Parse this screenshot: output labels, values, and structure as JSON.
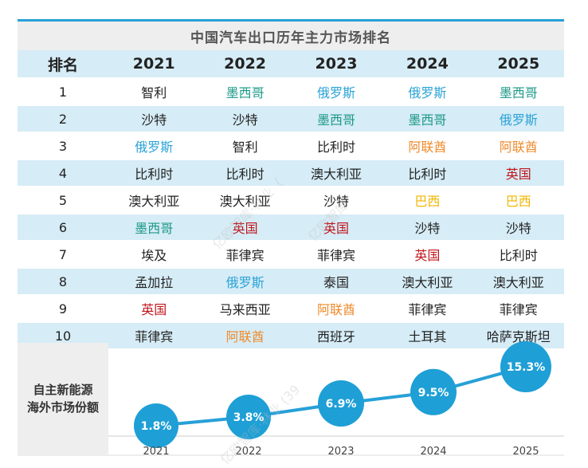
{
  "title": "中国汽车出口历年主力市场排名",
  "colors": {
    "accent": "#27a0d8",
    "bubble": "#1e9fd6",
    "row_band": "#d6ecf6",
    "red": "#c0161c",
    "teal": "#1d9988",
    "blue": "#2aa3d6",
    "orange": "#ef8a2a",
    "yellow": "#f2b600",
    "black": "#222222"
  },
  "table": {
    "header_rank": "排名",
    "years": [
      "2021",
      "2022",
      "2023",
      "2024",
      "2025"
    ],
    "rows": [
      {
        "rank": "1",
        "cells": [
          {
            "text": "智利",
            "color": "black"
          },
          {
            "text": "墨西哥",
            "color": "teal"
          },
          {
            "text": "俄罗斯",
            "color": "blue"
          },
          {
            "text": "俄罗斯",
            "color": "blue"
          },
          {
            "text": "墨西哥",
            "color": "teal"
          }
        ]
      },
      {
        "rank": "2",
        "cells": [
          {
            "text": "沙特",
            "color": "black"
          },
          {
            "text": "沙特",
            "color": "black"
          },
          {
            "text": "墨西哥",
            "color": "teal"
          },
          {
            "text": "墨西哥",
            "color": "teal"
          },
          {
            "text": "俄罗斯",
            "color": "blue"
          }
        ]
      },
      {
        "rank": "3",
        "cells": [
          {
            "text": "俄罗斯",
            "color": "blue"
          },
          {
            "text": "智利",
            "color": "black"
          },
          {
            "text": "比利时",
            "color": "black"
          },
          {
            "text": "阿联酋",
            "color": "orange"
          },
          {
            "text": "阿联酋",
            "color": "orange"
          }
        ]
      },
      {
        "rank": "4",
        "cells": [
          {
            "text": "比利时",
            "color": "black"
          },
          {
            "text": "比利时",
            "color": "black"
          },
          {
            "text": "澳大利亚",
            "color": "black"
          },
          {
            "text": "比利时",
            "color": "black"
          },
          {
            "text": "英国",
            "color": "red"
          }
        ]
      },
      {
        "rank": "5",
        "cells": [
          {
            "text": "澳大利亚",
            "color": "black"
          },
          {
            "text": "澳大利亚",
            "color": "black"
          },
          {
            "text": "沙特",
            "color": "black"
          },
          {
            "text": "巴西",
            "color": "yellow"
          },
          {
            "text": "巴西",
            "color": "yellow"
          }
        ]
      },
      {
        "rank": "6",
        "cells": [
          {
            "text": "墨西哥",
            "color": "teal"
          },
          {
            "text": "英国",
            "color": "red"
          },
          {
            "text": "英国",
            "color": "red"
          },
          {
            "text": "沙特",
            "color": "black"
          },
          {
            "text": "沙特",
            "color": "black"
          }
        ]
      },
      {
        "rank": "7",
        "cells": [
          {
            "text": "埃及",
            "color": "black"
          },
          {
            "text": "菲律宾",
            "color": "black"
          },
          {
            "text": "菲律宾",
            "color": "black"
          },
          {
            "text": "英国",
            "color": "red"
          },
          {
            "text": "比利时",
            "color": "black"
          }
        ]
      },
      {
        "rank": "8",
        "cells": [
          {
            "text": "孟加拉",
            "color": "black"
          },
          {
            "text": "俄罗斯",
            "color": "blue"
          },
          {
            "text": "泰国",
            "color": "black"
          },
          {
            "text": "澳大利亚",
            "color": "black"
          },
          {
            "text": "澳大利亚",
            "color": "black"
          }
        ]
      },
      {
        "rank": "9",
        "cells": [
          {
            "text": "英国",
            "color": "red"
          },
          {
            "text": "马来西亚",
            "color": "black"
          },
          {
            "text": "阿联酋",
            "color": "orange"
          },
          {
            "text": "菲律宾",
            "color": "black"
          },
          {
            "text": "菲律宾",
            "color": "black"
          }
        ]
      },
      {
        "rank": "10",
        "cells": [
          {
            "text": "菲律宾",
            "color": "black"
          },
          {
            "text": "阿联酋",
            "color": "orange"
          },
          {
            "text": "西班牙",
            "color": "black"
          },
          {
            "text": "土耳其",
            "color": "black"
          },
          {
            "text": "哈萨克斯坦",
            "color": "black"
          }
        ]
      }
    ]
  },
  "share_label": [
    "自主新能源",
    "海外市场份额"
  ],
  "chart_data": {
    "type": "line",
    "title": "自主新能源海外市场份额",
    "categories": [
      "2021",
      "2022",
      "2023",
      "2024",
      "2025"
    ],
    "series": [
      {
        "name": "自主新能源海外市场份额",
        "values": [
          1.8,
          3.8,
          6.9,
          9.5,
          15.3
        ]
      }
    ],
    "labels": [
      "1.8%",
      "3.8%",
      "6.9%",
      "9.5%",
      "15.3%"
    ],
    "unit": "%",
    "ylim": [
      0,
      16
    ],
    "grid": false,
    "legend": "none"
  },
  "watermark": {
    "a": "亿欧智库·林业（",
    "b": "亿欧智库·林业 (39",
    "c": "亿欧智库"
  }
}
